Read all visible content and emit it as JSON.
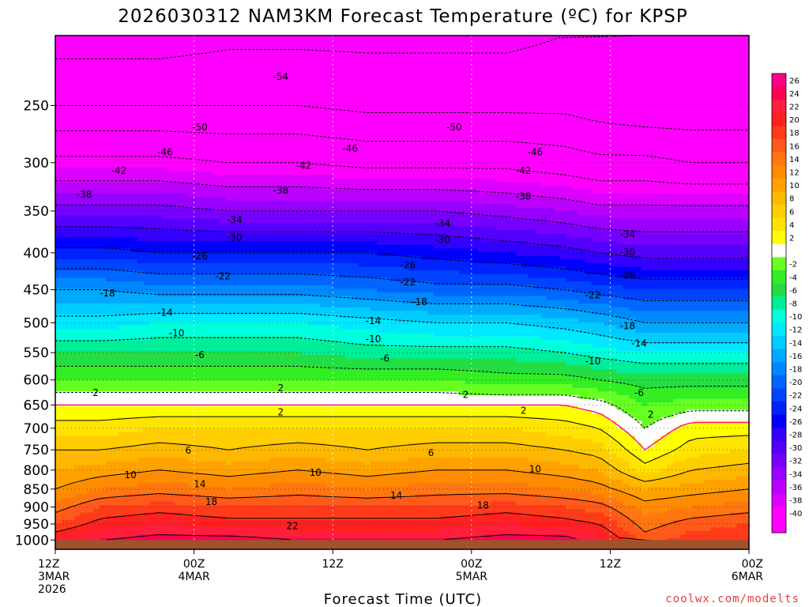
{
  "chart_data": {
    "type": "heatmap",
    "title": "2026030312 NAM3KM Forecast Temperature (ºC) for KPSP",
    "xlabel": "Forecast Time (UTC)",
    "ylabel": "",
    "credit": "coolwx.com/modelts",
    "y_axis": {
      "scale": "log",
      "inverted": true,
      "range": [
        1030,
        200
      ],
      "ticks": [
        250,
        300,
        350,
        400,
        450,
        500,
        550,
        600,
        650,
        700,
        750,
        800,
        850,
        900,
        950,
        1000
      ]
    },
    "x_axis": {
      "range_hours": [
        0,
        60
      ],
      "ticks": [
        {
          "hour": 0,
          "lines": [
            "12Z",
            "3MAR",
            "2026"
          ]
        },
        {
          "hour": 12,
          "lines": [
            "00Z",
            "4MAR"
          ]
        },
        {
          "hour": 24,
          "lines": [
            "12Z"
          ]
        },
        {
          "hour": 36,
          "lines": [
            "00Z",
            "5MAR"
          ]
        },
        {
          "hour": 48,
          "lines": [
            "12Z"
          ]
        },
        {
          "hour": 60,
          "lines": [
            "00Z",
            "6MAR"
          ]
        }
      ]
    },
    "ground_pressure": 1000,
    "ground_color": "#a0522d",
    "grid": true,
    "colorbar": {
      "position": "right",
      "levels": [
        26,
        24,
        22,
        20,
        18,
        16,
        14,
        12,
        10,
        8,
        6,
        4,
        2,
        0,
        -2,
        -4,
        -6,
        -8,
        -10,
        -12,
        -14,
        -16,
        -18,
        -20,
        -22,
        -24,
        -26,
        -28,
        -30,
        -32,
        -34,
        -36,
        -38,
        -40,
        -42
      ],
      "labels": [
        "26",
        "24",
        "22",
        "20",
        "18",
        "16",
        "14",
        "12",
        "10",
        "8",
        "6",
        "4",
        "2",
        "-2",
        "-4",
        "-6",
        "-8",
        "-10",
        "-12",
        "-14",
        "-16",
        "-18",
        "-20",
        "-22",
        "-24",
        "-26",
        "-28",
        "-30",
        "-32",
        "-34",
        "-36",
        "-38",
        "-40"
      ],
      "colors": [
        "#ff0088",
        "#ff0055",
        "#ff1f3a",
        "#ff2020",
        "#ff3b1a",
        "#ff5a1a",
        "#ff7711",
        "#ff8c00",
        "#ffa200",
        "#ffb800",
        "#ffce00",
        "#ffe400",
        "#ffff00",
        "#ffffff",
        "#66ff22",
        "#33ee22",
        "#22dd44",
        "#00ee99",
        "#00ffdd",
        "#00e8ff",
        "#00ccff",
        "#00aaff",
        "#0088ff",
        "#0066ff",
        "#0044ff",
        "#0022ff",
        "#0000ff",
        "#3300ff",
        "#5500ff",
        "#7700ff",
        "#9900ff",
        "#bb00ff",
        "#dd00ff",
        "#ff00ff",
        "#ff00ff"
      ]
    },
    "profile_hours": [
      0,
      4,
      9,
      15,
      21,
      27,
      33,
      39,
      44,
      47,
      51,
      55,
      60
    ],
    "profile_pressures": [
      1000,
      950,
      900,
      850,
      800,
      750,
      700,
      650,
      600,
      550,
      500,
      450,
      400,
      350,
      300,
      250,
      200
    ],
    "temperatures": [
      [
        20,
        16,
        13,
        10,
        8,
        6,
        3,
        0,
        -4,
        -8,
        -13,
        -18,
        -25,
        -33,
        -41,
        -50,
        -56
      ],
      [
        22,
        19,
        16,
        12,
        9,
        6,
        3,
        0,
        -4,
        -8,
        -13,
        -18,
        -25,
        -33,
        -41,
        -50,
        -56
      ],
      [
        23,
        20,
        17,
        13,
        10,
        7,
        4,
        0,
        -4,
        -8,
        -12,
        -19,
        -26,
        -33,
        -41,
        -50,
        -56
      ],
      [
        23,
        19,
        16,
        12,
        9,
        6,
        4,
        0,
        -4,
        -8,
        -12,
        -19,
        -26,
        -34,
        -42,
        -50,
        -55
      ],
      [
        22,
        19,
        16,
        13,
        10,
        7,
        4,
        0,
        -4,
        -8,
        -12,
        -19,
        -26,
        -34,
        -42,
        -50,
        -55
      ],
      [
        22,
        19,
        16,
        12,
        9,
        6,
        4,
        0,
        -4,
        -9,
        -13,
        -20,
        -26,
        -34,
        -43,
        -51,
        -55
      ],
      [
        22,
        19,
        16,
        13,
        10,
        7,
        4,
        0,
        -4,
        -9,
        -14,
        -21,
        -27,
        -34,
        -43,
        -51,
        -55
      ],
      [
        23,
        20,
        17,
        13,
        10,
        7,
        4,
        0,
        -5,
        -9,
        -14,
        -21,
        -28,
        -35,
        -43,
        -51,
        -55
      ],
      [
        23,
        19,
        16,
        12,
        9,
        6,
        3,
        0,
        -5,
        -10,
        -15,
        -22,
        -29,
        -36,
        -44,
        -51,
        -54
      ],
      [
        21,
        18,
        15,
        11,
        8,
        5,
        2,
        -1,
        -6,
        -11,
        -16,
        -23,
        -30,
        -37,
        -45,
        -52,
        -53
      ],
      [
        15,
        13,
        11,
        8,
        3,
        0,
        -2,
        -4,
        -7,
        -12,
        -18,
        -24,
        -31,
        -37,
        -45,
        -53,
        -54
      ],
      [
        17,
        15,
        12,
        9,
        6,
        3,
        1,
        -3,
        -7,
        -12,
        -18,
        -24,
        -31,
        -37,
        -46,
        -53,
        -54
      ],
      [
        18,
        16,
        13,
        10,
        7,
        4,
        1,
        -3,
        -7,
        -12,
        -18,
        -24,
        -31,
        -37,
        -46,
        -53,
        -54
      ]
    ],
    "contour_labels": [
      {
        "value": "-54",
        "hour": 19.5,
        "p": 228
      },
      {
        "value": "-50",
        "hour": 12.5,
        "p": 268
      },
      {
        "value": "-50",
        "hour": 34.5,
        "p": 268
      },
      {
        "value": "-46",
        "hour": 9.5,
        "p": 290
      },
      {
        "value": "-46",
        "hour": 25.5,
        "p": 287
      },
      {
        "value": "-46",
        "hour": 41.5,
        "p": 290
      },
      {
        "value": "-42",
        "hour": 5.5,
        "p": 308
      },
      {
        "value": "-42",
        "hour": 21.5,
        "p": 303
      },
      {
        "value": "-42",
        "hour": 40.5,
        "p": 308
      },
      {
        "value": "-38",
        "hour": 2.5,
        "p": 332
      },
      {
        "value": "-38",
        "hour": 19.5,
        "p": 328
      },
      {
        "value": "-38",
        "hour": 40.5,
        "p": 334
      },
      {
        "value": "-34",
        "hour": 15.5,
        "p": 360
      },
      {
        "value": "-34",
        "hour": 33.5,
        "p": 364
      },
      {
        "value": "-34",
        "hour": 49.5,
        "p": 377
      },
      {
        "value": "-30",
        "hour": 15.5,
        "p": 381
      },
      {
        "value": "-30",
        "hour": 33.5,
        "p": 384
      },
      {
        "value": "-30",
        "hour": 49.5,
        "p": 399
      },
      {
        "value": "-26",
        "hour": 12.5,
        "p": 404
      },
      {
        "value": "-26",
        "hour": 30.5,
        "p": 416
      },
      {
        "value": "-26",
        "hour": 49.5,
        "p": 430
      },
      {
        "value": "-22",
        "hour": 14.5,
        "p": 431
      },
      {
        "value": "-22",
        "hour": 30.5,
        "p": 439
      },
      {
        "value": "-22",
        "hour": 46.5,
        "p": 458
      },
      {
        "value": "-18",
        "hour": 4.5,
        "p": 455
      },
      {
        "value": "-18",
        "hour": 31.5,
        "p": 468
      },
      {
        "value": "-18",
        "hour": 49.5,
        "p": 505
      },
      {
        "value": "-14",
        "hour": 9.5,
        "p": 484
      },
      {
        "value": "-14",
        "hour": 27.5,
        "p": 497
      },
      {
        "value": "-14",
        "hour": 50.5,
        "p": 534
      },
      {
        "value": "-10",
        "hour": 10.5,
        "p": 517
      },
      {
        "value": "-10",
        "hour": 27.5,
        "p": 527
      },
      {
        "value": "-10",
        "hour": 46.5,
        "p": 565
      },
      {
        "value": "-6",
        "hour": 12.5,
        "p": 554
      },
      {
        "value": "-6",
        "hour": 28.5,
        "p": 560
      },
      {
        "value": "-6",
        "hour": 50.5,
        "p": 625
      },
      {
        "value": "2",
        "hour": 3.5,
        "p": 625
      },
      {
        "value": "2",
        "hour": 19.5,
        "p": 616
      },
      {
        "value": "2",
        "hour": 35.5,
        "p": 629
      },
      {
        "value": "2",
        "hour": 51.5,
        "p": 670
      },
      {
        "value": "2",
        "hour": 19.5,
        "p": 665
      },
      {
        "value": "2",
        "hour": 40.5,
        "p": 662
      },
      {
        "value": "6",
        "hour": 11.5,
        "p": 752
      },
      {
        "value": "6",
        "hour": 32.5,
        "p": 757
      },
      {
        "value": "10",
        "hour": 6.5,
        "p": 813
      },
      {
        "value": "10",
        "hour": 22.5,
        "p": 807
      },
      {
        "value": "10",
        "hour": 41.5,
        "p": 797
      },
      {
        "value": "14",
        "hour": 12.5,
        "p": 837
      },
      {
        "value": "14",
        "hour": 29.5,
        "p": 868
      },
      {
        "value": "18",
        "hour": 13.5,
        "p": 885
      },
      {
        "value": "18",
        "hour": 37.0,
        "p": 895
      },
      {
        "value": "22",
        "hour": 20.5,
        "p": 956
      }
    ]
  }
}
